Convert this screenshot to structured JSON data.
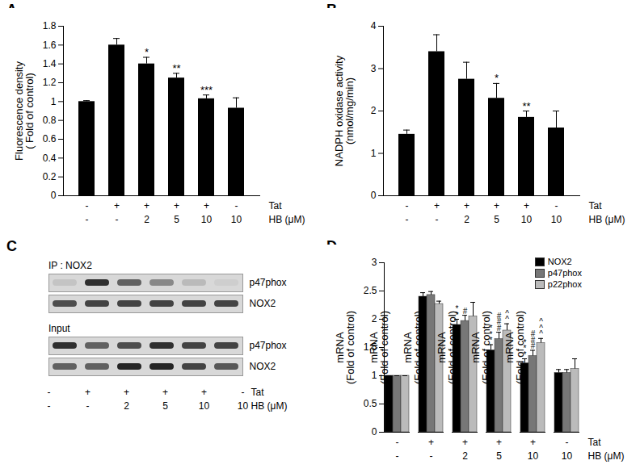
{
  "chart_data": [
    {
      "type": "bar",
      "title": "A",
      "ylabel": "Fluorescence density\n( Fold of control)",
      "condition_labels": [
        "Tat",
        "HB (μM)"
      ],
      "conditions": [
        [
          "-",
          "+",
          "+",
          "+",
          "+",
          "-"
        ],
        [
          "-",
          "-",
          "2",
          "5",
          "10",
          "10"
        ]
      ],
      "values": [
        1.0,
        1.6,
        1.4,
        1.25,
        1.03,
        0.93
      ],
      "errors": [
        0.01,
        0.07,
        0.07,
        0.05,
        0.04,
        0.11
      ],
      "annotations": [
        null,
        null,
        "*",
        "**",
        "***",
        null
      ],
      "color": "#000000",
      "ylim": [
        0,
        1.8
      ],
      "yticks": [
        0,
        0.2,
        0.4,
        0.6,
        0.8,
        1,
        1.2,
        1.4,
        1.6,
        1.8
      ]
    },
    {
      "type": "bar",
      "title": "B",
      "ylabel": "NADPH oxidase activity\n(nmol/mg/min)",
      "condition_labels": [
        "Tat",
        "HB (μM)"
      ],
      "conditions": [
        [
          "-",
          "+",
          "+",
          "+",
          "+",
          "-"
        ],
        [
          "-",
          "-",
          "2",
          "5",
          "10",
          "10"
        ]
      ],
      "values": [
        1.45,
        3.4,
        2.75,
        2.3,
        1.85,
        1.6
      ],
      "errors": [
        0.1,
        0.4,
        0.4,
        0.35,
        0.15,
        0.4
      ],
      "annotations": [
        null,
        null,
        null,
        "*",
        "**",
        null
      ],
      "color": "#000000",
      "ylim": [
        0,
        4
      ],
      "yticks": [
        0,
        1,
        2,
        3,
        4
      ]
    },
    {
      "type": "blot",
      "title": "C",
      "condition_labels": [
        "Tat",
        "HB (μM)"
      ],
      "conditions": [
        [
          "-",
          "+",
          "+",
          "+",
          "+",
          "-"
        ],
        [
          "-",
          "-",
          "2",
          "5",
          "10",
          "10"
        ]
      ],
      "intensity_range": [
        0,
        1
      ],
      "sections": [
        {
          "header": "IP : NOX2",
          "rows": [
            {
              "name": "p47phox",
              "values": [
                0.1,
                0.85,
                0.6,
                0.4,
                0.15,
                0.05
              ]
            },
            {
              "name": "NOX2",
              "values": [
                0.7,
                0.75,
                0.75,
                0.75,
                0.75,
                0.75
              ]
            }
          ]
        },
        {
          "header": "Input",
          "rows": [
            {
              "name": "p47phox",
              "values": [
                0.85,
                0.6,
                0.7,
                0.85,
                0.75,
                0.75
              ]
            },
            {
              "name": "NOX2",
              "values": [
                0.6,
                0.6,
                0.9,
                0.9,
                0.75,
                0.65
              ]
            }
          ]
        }
      ]
    },
    {
      "type": "bar",
      "title": "D",
      "ylabel": "mRNA\n(Fold of control)",
      "condition_labels": [
        "Tat",
        "HB (μM)"
      ],
      "conditions": [
        [
          "-",
          "+",
          "+",
          "+",
          "+",
          "-"
        ],
        [
          "-",
          "-",
          "2",
          "5",
          "10",
          "10"
        ]
      ],
      "legend": "top-right",
      "series": [
        {
          "name": "NOX2",
          "color": "#000000",
          "values": [
            1,
            2.4,
            1.9,
            1.45,
            1.22,
            1.05
          ],
          "errors": [
            0,
            0.07,
            0.1,
            0.1,
            0.08,
            0.06
          ],
          "annotations": [
            null,
            null,
            "**",
            "***",
            "***",
            null
          ]
        },
        {
          "name": "p47phox",
          "color": "#777777",
          "values": [
            1,
            2.43,
            1.97,
            1.65,
            1.35,
            1.05
          ],
          "errors": [
            0,
            0.06,
            0.1,
            0.12,
            0.1,
            0.06
          ],
          "annotations": [
            null,
            null,
            "#",
            "###",
            "###",
            null
          ]
        },
        {
          "name": "p22phox",
          "color": "#bbbbbb",
          "values": [
            1,
            2.27,
            2.05,
            1.8,
            1.58,
            1.12
          ],
          "errors": [
            0,
            0.05,
            0.25,
            0.12,
            0.08,
            0.18
          ],
          "annotations": [
            null,
            null,
            null,
            "^^",
            "^^^",
            null
          ]
        }
      ],
      "ylim": [
        0,
        3
      ],
      "yticks": [
        0,
        0.5,
        1,
        1.5,
        2,
        2.5,
        3
      ]
    }
  ]
}
